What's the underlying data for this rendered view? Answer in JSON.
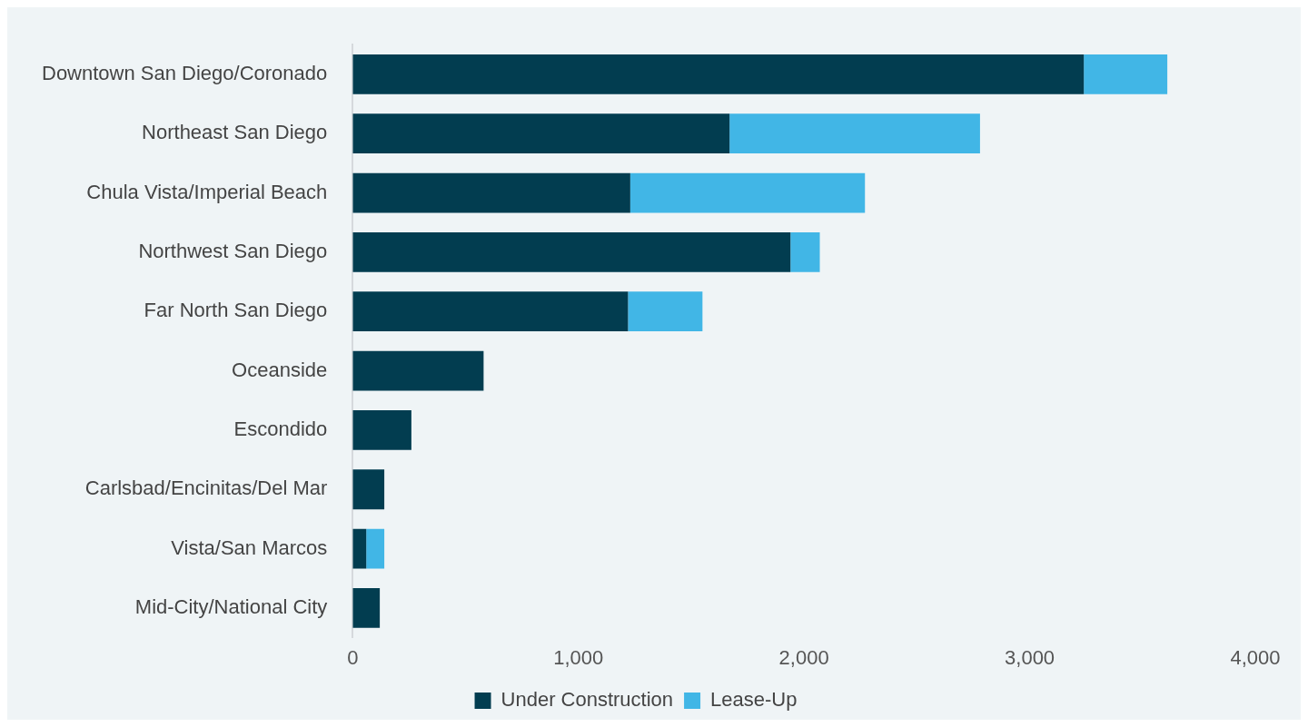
{
  "chart_data": {
    "type": "bar",
    "orientation": "horizontal",
    "stacked": true,
    "categories": [
      "Downtown San Diego/Coronado",
      "Northeast San Diego",
      "Chula Vista/Imperial Beach",
      "Northwest San Diego",
      "Far North San Diego",
      "Oceanside",
      "Escondido",
      "Carlsbad/Encinitas/Del Mar",
      "Vista/San Marcos",
      "Mid-City/National City"
    ],
    "series": [
      {
        "name": "Under Construction",
        "color": "#023d50",
        "values": [
          3240,
          1670,
          1230,
          1940,
          1220,
          580,
          260,
          140,
          60,
          120
        ]
      },
      {
        "name": "Lease-Up",
        "color": "#41b6e6",
        "values": [
          370,
          1110,
          1040,
          130,
          330,
          null,
          null,
          null,
          80,
          null
        ]
      }
    ],
    "xlim": [
      0,
      4000
    ],
    "xticks": [
      0,
      {
        "value": 1000,
        "label": "1,000"
      },
      {
        "value": 2000,
        "label": "2,000"
      },
      {
        "value": 3000,
        "label": "3,000"
      },
      {
        "value": 4000,
        "label": "4,000"
      }
    ],
    "grid": false,
    "legend": "bottom"
  }
}
